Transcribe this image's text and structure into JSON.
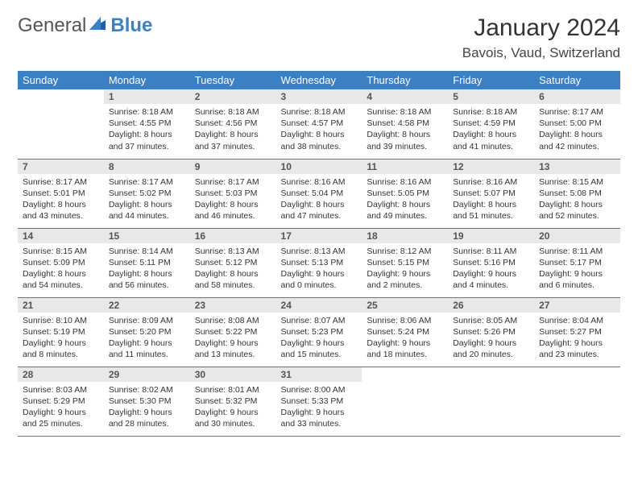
{
  "brand": {
    "part1": "General",
    "part2": "Blue"
  },
  "title": "January 2024",
  "location": "Bavois, Vaud, Switzerland",
  "colors": {
    "header_bg": "#3b7fc4",
    "header_text": "#ffffff",
    "daynum_bg": "#e8e8e8",
    "border": "#3b7fc4",
    "brand_blue": "#3b7fc4",
    "brand_gray": "#555555",
    "page_bg": "#ffffff"
  },
  "weekdays": [
    "Sunday",
    "Monday",
    "Tuesday",
    "Wednesday",
    "Thursday",
    "Friday",
    "Saturday"
  ],
  "start_offset": 1,
  "days": [
    {
      "n": 1,
      "sunrise": "8:18 AM",
      "sunset": "4:55 PM",
      "daylight": "8 hours and 37 minutes."
    },
    {
      "n": 2,
      "sunrise": "8:18 AM",
      "sunset": "4:56 PM",
      "daylight": "8 hours and 37 minutes."
    },
    {
      "n": 3,
      "sunrise": "8:18 AM",
      "sunset": "4:57 PM",
      "daylight": "8 hours and 38 minutes."
    },
    {
      "n": 4,
      "sunrise": "8:18 AM",
      "sunset": "4:58 PM",
      "daylight": "8 hours and 39 minutes."
    },
    {
      "n": 5,
      "sunrise": "8:18 AM",
      "sunset": "4:59 PM",
      "daylight": "8 hours and 41 minutes."
    },
    {
      "n": 6,
      "sunrise": "8:17 AM",
      "sunset": "5:00 PM",
      "daylight": "8 hours and 42 minutes."
    },
    {
      "n": 7,
      "sunrise": "8:17 AM",
      "sunset": "5:01 PM",
      "daylight": "8 hours and 43 minutes."
    },
    {
      "n": 8,
      "sunrise": "8:17 AM",
      "sunset": "5:02 PM",
      "daylight": "8 hours and 44 minutes."
    },
    {
      "n": 9,
      "sunrise": "8:17 AM",
      "sunset": "5:03 PM",
      "daylight": "8 hours and 46 minutes."
    },
    {
      "n": 10,
      "sunrise": "8:16 AM",
      "sunset": "5:04 PM",
      "daylight": "8 hours and 47 minutes."
    },
    {
      "n": 11,
      "sunrise": "8:16 AM",
      "sunset": "5:05 PM",
      "daylight": "8 hours and 49 minutes."
    },
    {
      "n": 12,
      "sunrise": "8:16 AM",
      "sunset": "5:07 PM",
      "daylight": "8 hours and 51 minutes."
    },
    {
      "n": 13,
      "sunrise": "8:15 AM",
      "sunset": "5:08 PM",
      "daylight": "8 hours and 52 minutes."
    },
    {
      "n": 14,
      "sunrise": "8:15 AM",
      "sunset": "5:09 PM",
      "daylight": "8 hours and 54 minutes."
    },
    {
      "n": 15,
      "sunrise": "8:14 AM",
      "sunset": "5:11 PM",
      "daylight": "8 hours and 56 minutes."
    },
    {
      "n": 16,
      "sunrise": "8:13 AM",
      "sunset": "5:12 PM",
      "daylight": "8 hours and 58 minutes."
    },
    {
      "n": 17,
      "sunrise": "8:13 AM",
      "sunset": "5:13 PM",
      "daylight": "9 hours and 0 minutes."
    },
    {
      "n": 18,
      "sunrise": "8:12 AM",
      "sunset": "5:15 PM",
      "daylight": "9 hours and 2 minutes."
    },
    {
      "n": 19,
      "sunrise": "8:11 AM",
      "sunset": "5:16 PM",
      "daylight": "9 hours and 4 minutes."
    },
    {
      "n": 20,
      "sunrise": "8:11 AM",
      "sunset": "5:17 PM",
      "daylight": "9 hours and 6 minutes."
    },
    {
      "n": 21,
      "sunrise": "8:10 AM",
      "sunset": "5:19 PM",
      "daylight": "9 hours and 8 minutes."
    },
    {
      "n": 22,
      "sunrise": "8:09 AM",
      "sunset": "5:20 PM",
      "daylight": "9 hours and 11 minutes."
    },
    {
      "n": 23,
      "sunrise": "8:08 AM",
      "sunset": "5:22 PM",
      "daylight": "9 hours and 13 minutes."
    },
    {
      "n": 24,
      "sunrise": "8:07 AM",
      "sunset": "5:23 PM",
      "daylight": "9 hours and 15 minutes."
    },
    {
      "n": 25,
      "sunrise": "8:06 AM",
      "sunset": "5:24 PM",
      "daylight": "9 hours and 18 minutes."
    },
    {
      "n": 26,
      "sunrise": "8:05 AM",
      "sunset": "5:26 PM",
      "daylight": "9 hours and 20 minutes."
    },
    {
      "n": 27,
      "sunrise": "8:04 AM",
      "sunset": "5:27 PM",
      "daylight": "9 hours and 23 minutes."
    },
    {
      "n": 28,
      "sunrise": "8:03 AM",
      "sunset": "5:29 PM",
      "daylight": "9 hours and 25 minutes."
    },
    {
      "n": 29,
      "sunrise": "8:02 AM",
      "sunset": "5:30 PM",
      "daylight": "9 hours and 28 minutes."
    },
    {
      "n": 30,
      "sunrise": "8:01 AM",
      "sunset": "5:32 PM",
      "daylight": "9 hours and 30 minutes."
    },
    {
      "n": 31,
      "sunrise": "8:00 AM",
      "sunset": "5:33 PM",
      "daylight": "9 hours and 33 minutes."
    }
  ],
  "labels": {
    "sunrise": "Sunrise:",
    "sunset": "Sunset:",
    "daylight": "Daylight:"
  }
}
